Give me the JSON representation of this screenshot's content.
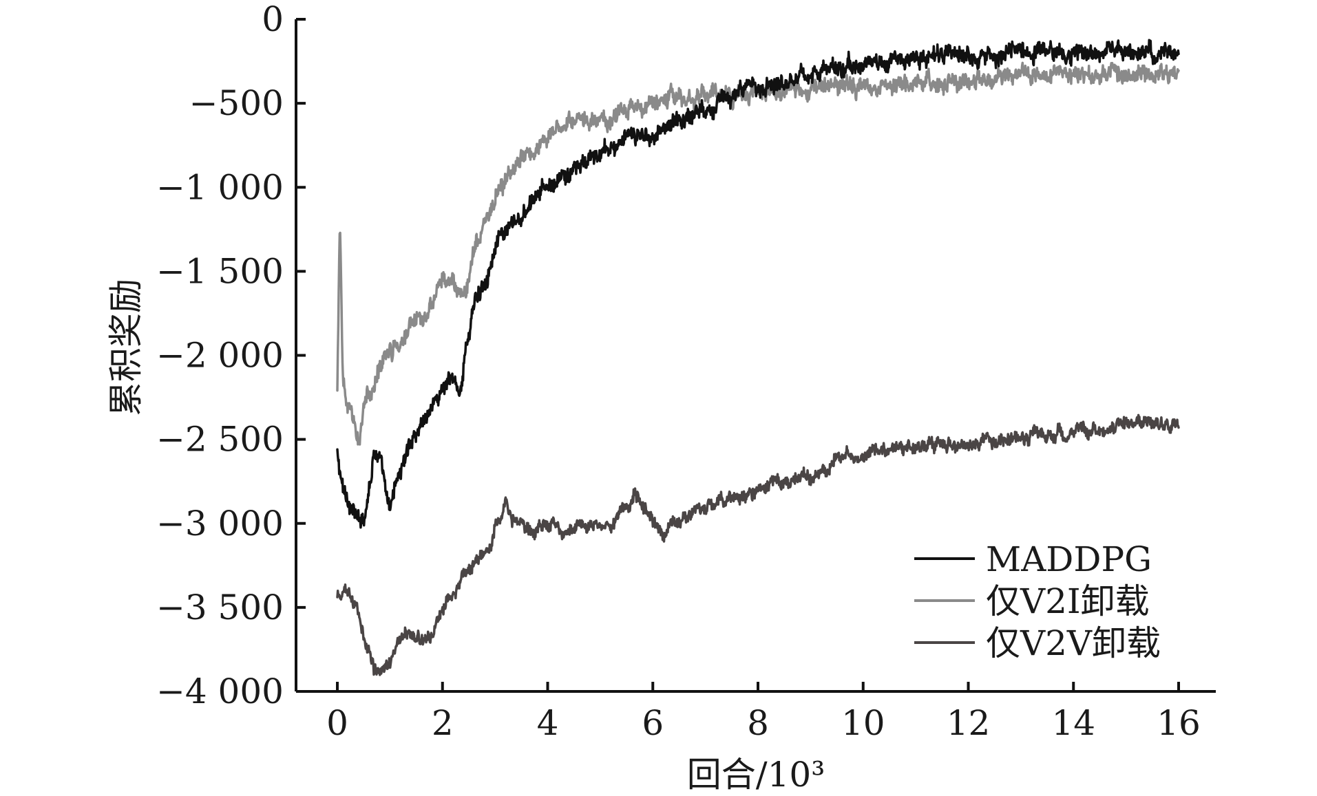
{
  "chart_data": {
    "type": "line",
    "xlabel": "回合/10³",
    "ylabel": "累积奖励",
    "xlim": [
      -0.8,
      16.6
    ],
    "ylim": [
      -4000,
      0
    ],
    "xticks": [
      0,
      2,
      4,
      6,
      8,
      10,
      12,
      14,
      16
    ],
    "xtick_labels": [
      "0",
      "2",
      "4",
      "6",
      "8",
      "10",
      "12",
      "14",
      "16"
    ],
    "yticks": [
      0,
      -500,
      -1000,
      -1500,
      -2000,
      -2500,
      -3000,
      -3500,
      -4000
    ],
    "ytick_labels": [
      "0",
      "−500",
      "−1 000",
      "−1 500",
      "−2 000",
      "−2 500",
      "−3 000",
      "−3 500",
      "−4 000"
    ],
    "grid": false,
    "legend_position": "bottom-right",
    "series": [
      {
        "name": "MADDPG",
        "color": "#111111",
        "x": [
          0,
          0.1,
          0.2,
          0.3,
          0.4,
          0.5,
          0.6,
          0.7,
          0.8,
          0.9,
          1.0,
          1.1,
          1.2,
          1.3,
          1.4,
          1.5,
          1.6,
          1.8,
          2.0,
          2.2,
          2.35,
          2.45,
          2.6,
          2.8,
          3.0,
          3.3,
          3.6,
          3.8,
          4.0,
          4.3,
          4.6,
          5.0,
          5.5,
          6.0,
          6.5,
          7.0,
          7.5,
          8.0,
          8.5,
          9.0,
          10.0,
          11.0,
          12.0,
          13.0,
          14.0,
          15.0,
          16.0
        ],
        "y": [
          -2600,
          -2800,
          -2850,
          -2920,
          -3000,
          -2950,
          -2800,
          -2550,
          -2600,
          -2800,
          -2950,
          -2750,
          -2700,
          -2600,
          -2500,
          -2450,
          -2400,
          -2300,
          -2200,
          -2150,
          -2200,
          -1950,
          -1700,
          -1550,
          -1350,
          -1250,
          -1150,
          -1050,
          -1000,
          -950,
          -880,
          -800,
          -720,
          -680,
          -600,
          -520,
          -460,
          -400,
          -350,
          -320,
          -270,
          -230,
          -210,
          -200,
          -195,
          -200,
          -200
        ],
        "noise": 45
      },
      {
        "name": "仅V2I卸载",
        "color": "#8a8a8a",
        "x": [
          0,
          0.05,
          0.1,
          0.2,
          0.3,
          0.4,
          0.5,
          0.6,
          0.7,
          0.8,
          1.0,
          1.2,
          1.4,
          1.6,
          1.8,
          2.0,
          2.2,
          2.4,
          2.6,
          2.8,
          3.0,
          3.3,
          3.6,
          4.0,
          4.5,
          5.0,
          5.5,
          6.0,
          6.5,
          7.0,
          7.5,
          8.0,
          9.0,
          10.0,
          11.0,
          12.0,
          13.0,
          14.0,
          15.0,
          16.0
        ],
        "y": [
          -2200,
          -1200,
          -2100,
          -2300,
          -2400,
          -2550,
          -2300,
          -2250,
          -2200,
          -2050,
          -1950,
          -1900,
          -1800,
          -1750,
          -1700,
          -1550,
          -1600,
          -1700,
          -1400,
          -1200,
          -1050,
          -900,
          -800,
          -700,
          -620,
          -600,
          -550,
          -500,
          -470,
          -450,
          -440,
          -430,
          -410,
          -390,
          -370,
          -360,
          -340,
          -330,
          -320,
          -320
        ],
        "noise": 45
      },
      {
        "name": "仅V2V卸载",
        "color": "#4a4545",
        "x": [
          0,
          0.1,
          0.2,
          0.3,
          0.4,
          0.5,
          0.6,
          0.7,
          0.8,
          1.0,
          1.2,
          1.4,
          1.6,
          1.8,
          2.0,
          2.3,
          2.6,
          2.9,
          3.1,
          3.2,
          3.4,
          3.7,
          4.0,
          4.4,
          4.8,
          5.2,
          5.5,
          5.65,
          5.8,
          6.0,
          6.2,
          6.4,
          6.7,
          7.0,
          7.5,
          8.0,
          8.5,
          9.0,
          9.3,
          9.5,
          10.0,
          10.5,
          11.0,
          12.0,
          13.0,
          14.0,
          14.5,
          15.0,
          16.0
        ],
        "y": [
          -3450,
          -3420,
          -3400,
          -3450,
          -3550,
          -3650,
          -3750,
          -3850,
          -3880,
          -3800,
          -3700,
          -3650,
          -3700,
          -3650,
          -3500,
          -3350,
          -3250,
          -3150,
          -2950,
          -2900,
          -3000,
          -3050,
          -3000,
          -3050,
          -3000,
          -3000,
          -2900,
          -2800,
          -2900,
          -3000,
          -3080,
          -3000,
          -2950,
          -2900,
          -2850,
          -2800,
          -2750,
          -2720,
          -2680,
          -2600,
          -2600,
          -2560,
          -2550,
          -2520,
          -2500,
          -2450,
          -2460,
          -2420,
          -2400
        ],
        "noise": 35
      }
    ]
  }
}
